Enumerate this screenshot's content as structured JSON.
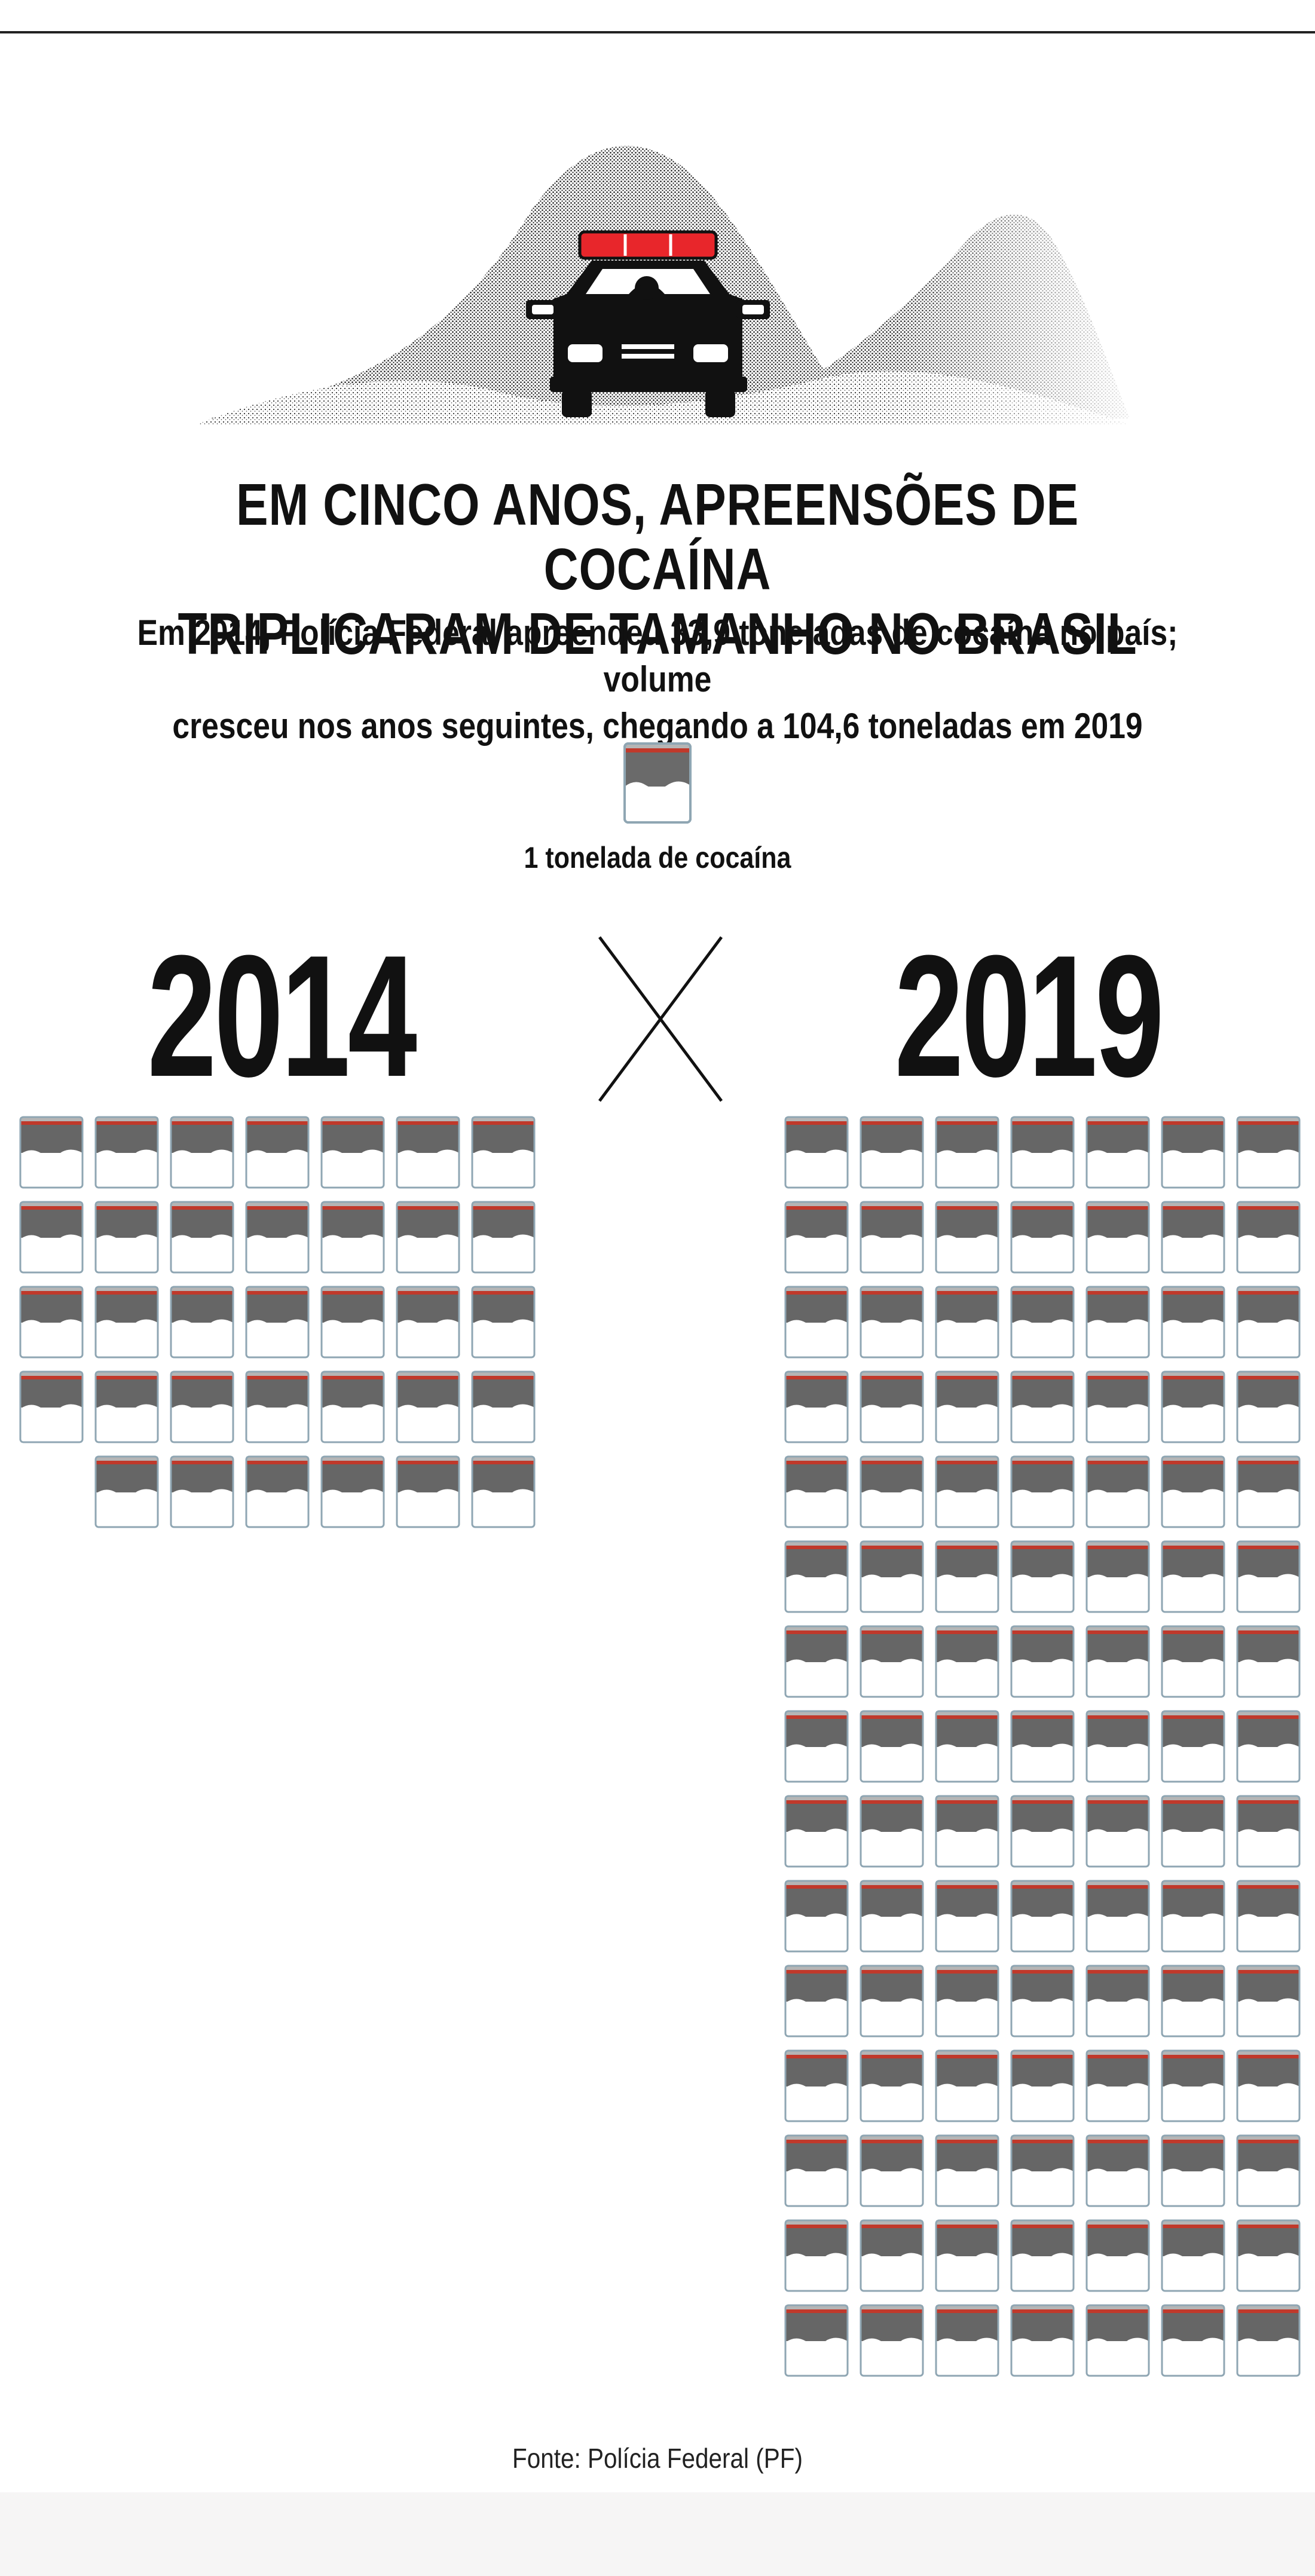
{
  "header": {
    "title_line_1": "EM CINCO ANOS, APREENSÕES DE COCAÍNA",
    "title_line_2": "TRIPLICARAM DE TAMANHO NO BRASIL",
    "subtitle_line_1": "Em 2014, Polícia Federal apreendeu 33,9 toneladas de cocaína no país; volume",
    "subtitle_line_2": "cresceu nos anos seguintes, chegando a 104,6 toneladas em 2019"
  },
  "legend": {
    "label": "1 tonelada de cocaína",
    "icon": "cocaine-bag-icon"
  },
  "illustration": {
    "icon": "police-car-in-mountains-illustration"
  },
  "versus_icon": "versus-cross-icon",
  "source": "Fonte: Polícia Federal (PF)",
  "colors": {
    "siren_red": "#e8262b",
    "bag_stripe_red": "#c0392b",
    "bag_dark": "#666666",
    "bag_outline": "#8fa6b3",
    "text": "#111111"
  },
  "chart_data": {
    "type": "pictogram",
    "unit": "1 tonelada de cocaína",
    "series": [
      {
        "name": "2014",
        "value": 33.9,
        "icons": 34
      },
      {
        "name": "2019",
        "value": 104.6,
        "icons": 105
      }
    ],
    "icons_per_row": 7
  }
}
